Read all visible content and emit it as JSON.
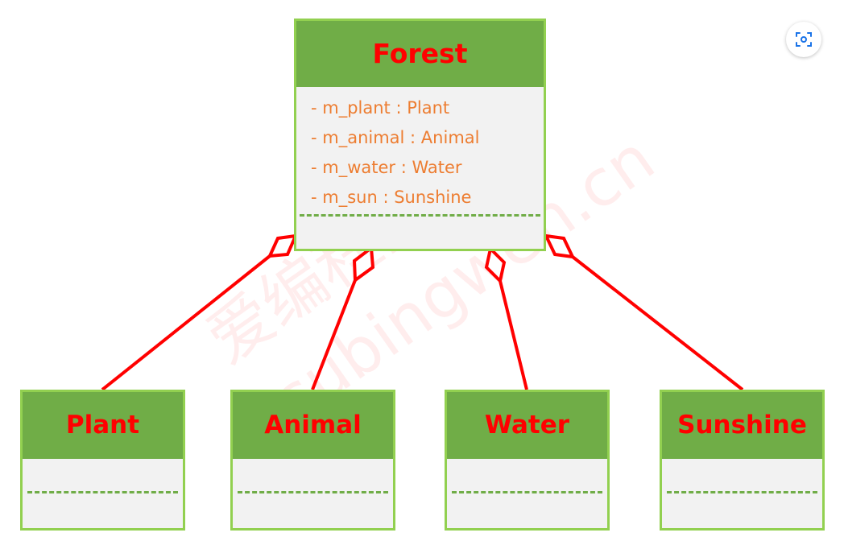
{
  "forest": {
    "name": "Forest",
    "attributes": [
      "- m_plant : Plant",
      "- m_animal : Animal",
      "- m_water : Water",
      "- m_sun : Sunshine"
    ]
  },
  "children": [
    {
      "name": "Plant"
    },
    {
      "name": "Animal"
    },
    {
      "name": "Water"
    },
    {
      "name": "Sunshine"
    }
  ],
  "relationship": "aggregation",
  "watermark": {
    "line1": "爱编程的大丙",
    "line2": "subingwen.cn"
  },
  "colors": {
    "header": "#70ad47",
    "border": "#92d050",
    "body": "#f2f2f2",
    "class_name": "#ff0000",
    "attribute": "#ed7d31",
    "connector": "#ff0000"
  },
  "icons": {
    "lens": "google-lens-icon"
  }
}
